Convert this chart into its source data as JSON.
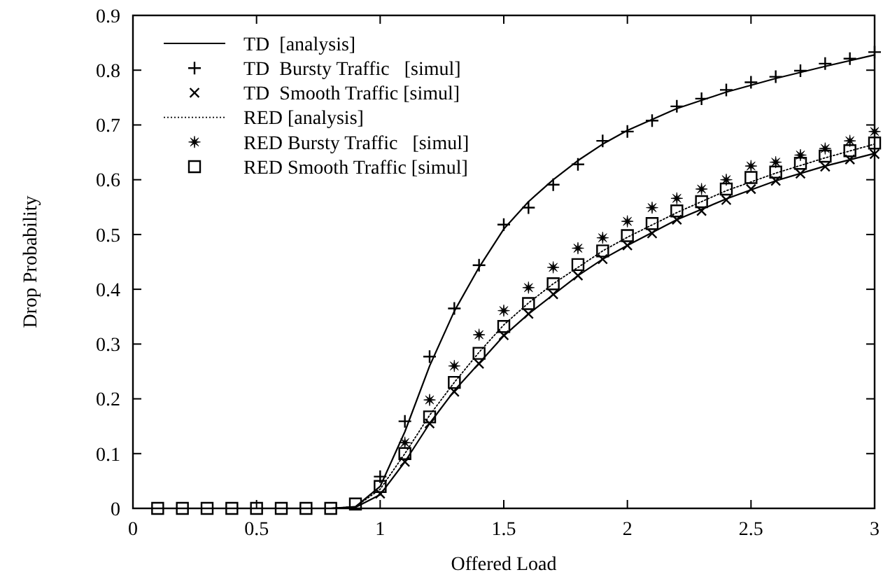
{
  "chart_data": {
    "type": "line",
    "xlabel": "Offered Load",
    "ylabel": "Drop Probability",
    "xlim": [
      0,
      3
    ],
    "ylim": [
      0,
      0.9
    ],
    "xticks": [
      0,
      0.5,
      1,
      1.5,
      2,
      2.5,
      3
    ],
    "yticks": [
      0,
      0.1,
      0.2,
      0.3,
      0.4,
      0.5,
      0.6,
      0.7,
      0.8,
      0.9
    ],
    "grid": false,
    "legend": "top left",
    "series": [
      {
        "name": "TD  [analysis]",
        "color": "#000000",
        "line_style": "solid",
        "marker": "none",
        "x": [
          0,
          0.8,
          0.9,
          1.0,
          1.1,
          1.2,
          1.3,
          1.4,
          1.5,
          1.6,
          1.7,
          1.8,
          1.9,
          2.0,
          2.2,
          2.4,
          2.6,
          2.8,
          3.0
        ],
        "values": [
          0,
          0,
          0.003,
          0.04,
          0.14,
          0.26,
          0.36,
          0.44,
          0.51,
          0.56,
          0.6,
          0.635,
          0.665,
          0.69,
          0.73,
          0.76,
          0.785,
          0.807,
          0.828
        ]
      },
      {
        "name": "TD  Bursty Traffic   [simul]",
        "type": "scatter",
        "color": "#000000",
        "marker": "cross",
        "x": [
          1.0,
          1.1,
          1.2,
          1.3,
          1.4,
          1.5,
          1.6,
          1.7,
          1.8,
          1.9,
          2.0,
          2.1,
          2.2,
          2.3,
          2.4,
          2.5,
          2.6,
          2.7,
          2.8,
          2.9,
          3.0
        ],
        "values": [
          0.058,
          0.159,
          0.277,
          0.365,
          0.444,
          0.518,
          0.549,
          0.591,
          0.628,
          0.671,
          0.688,
          0.708,
          0.734,
          0.748,
          0.764,
          0.778,
          0.788,
          0.799,
          0.812,
          0.821,
          0.833
        ]
      },
      {
        "name": "TD  Smooth Traffic [simul]",
        "type": "scatter",
        "color": "#000000",
        "marker": "x",
        "x": [
          1.0,
          1.1,
          1.2,
          1.3,
          1.4,
          1.5,
          1.6,
          1.7,
          1.8,
          1.9,
          2.0,
          2.1,
          2.2,
          2.3,
          2.4,
          2.5,
          2.6,
          2.7,
          2.8,
          2.9,
          3.0
        ],
        "values": [
          0.027,
          0.085,
          0.155,
          0.213,
          0.264,
          0.316,
          0.355,
          0.391,
          0.425,
          0.455,
          0.48,
          0.502,
          0.527,
          0.543,
          0.563,
          0.583,
          0.598,
          0.611,
          0.624,
          0.637,
          0.647
        ]
      },
      {
        "name": "RED [analysis]",
        "color": "#000000",
        "line_style": "dotted",
        "marker": "none",
        "x": [
          0,
          0.8,
          0.9,
          1.0,
          1.1,
          1.2,
          1.3,
          1.4,
          1.5,
          1.6,
          1.7,
          1.8,
          1.9,
          2.0,
          2.2,
          2.4,
          2.6,
          2.8,
          3.0
        ],
        "values": [
          0,
          0,
          0.003,
          0.035,
          0.1,
          0.17,
          0.23,
          0.285,
          0.335,
          0.375,
          0.41,
          0.44,
          0.47,
          0.495,
          0.54,
          0.58,
          0.612,
          0.64,
          0.665
        ]
      },
      {
        "name": "RED Bursty Traffic   [simul]",
        "type": "scatter",
        "color": "#000000",
        "marker": "star",
        "x": [
          1.1,
          1.2,
          1.3,
          1.4,
          1.5,
          1.6,
          1.7,
          1.8,
          1.9,
          2.0,
          2.1,
          2.2,
          2.3,
          2.4,
          2.5,
          2.6,
          2.7,
          2.8,
          2.9,
          3.0
        ],
        "values": [
          0.12,
          0.198,
          0.26,
          0.317,
          0.361,
          0.403,
          0.44,
          0.475,
          0.494,
          0.524,
          0.549,
          0.566,
          0.583,
          0.6,
          0.625,
          0.632,
          0.645,
          0.657,
          0.671,
          0.688
        ]
      },
      {
        "name": "RED Smooth Traffic [simul]",
        "type": "scatter",
        "color": "#000000",
        "marker": "square",
        "x": [
          0.1,
          0.2,
          0.3,
          0.4,
          0.5,
          0.6,
          0.7,
          0.8,
          0.9,
          1.0,
          1.1,
          1.2,
          1.3,
          1.4,
          1.5,
          1.6,
          1.7,
          1.8,
          1.9,
          2.0,
          2.1,
          2.2,
          2.3,
          2.4,
          2.5,
          2.6,
          2.7,
          2.8,
          2.9,
          3.0
        ],
        "values": [
          0,
          0,
          0,
          0,
          0,
          0,
          0,
          0,
          0.008,
          0.04,
          0.1,
          0.167,
          0.23,
          0.283,
          0.332,
          0.374,
          0.41,
          0.445,
          0.47,
          0.498,
          0.52,
          0.543,
          0.56,
          0.583,
          0.604,
          0.614,
          0.63,
          0.643,
          0.653,
          0.667
        ]
      },
      {
        "color": "#000000",
        "line_style": "solid",
        "marker": "none",
        "x": [
          0,
          0.8,
          0.9,
          1.0,
          1.1,
          1.2,
          1.3,
          1.4,
          1.5,
          1.6,
          1.7,
          1.8,
          1.9,
          2.0,
          2.2,
          2.4,
          2.6,
          2.8,
          3.0
        ],
        "values": [
          0,
          0,
          0.002,
          0.025,
          0.085,
          0.155,
          0.215,
          0.265,
          0.315,
          0.355,
          0.39,
          0.425,
          0.455,
          0.48,
          0.527,
          0.565,
          0.598,
          0.625,
          0.648
        ]
      }
    ]
  }
}
